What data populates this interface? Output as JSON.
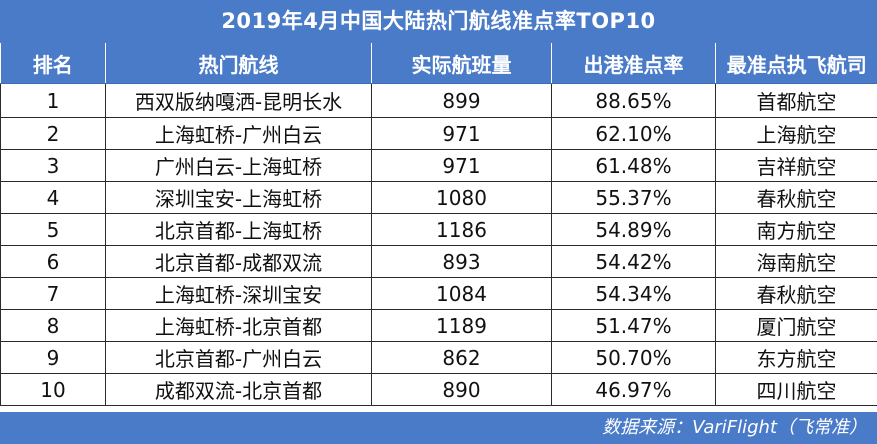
{
  "title": "2019年4月中国大陆热门航线准点率TOP10",
  "columns": [
    "排名",
    "热门航线",
    "实际航班量",
    "出港准点率",
    "最准点执飞航司"
  ],
  "rows": [
    {
      "rank": "1",
      "route": "西双版纳嘎洒-昆明长水",
      "flights": "899",
      "ontime": "88.65%",
      "airline": "首都航空"
    },
    {
      "rank": "2",
      "route": "上海虹桥-广州白云",
      "flights": "971",
      "ontime": "62.10%",
      "airline": "上海航空"
    },
    {
      "rank": "3",
      "route": "广州白云-上海虹桥",
      "flights": "971",
      "ontime": "61.48%",
      "airline": "吉祥航空"
    },
    {
      "rank": "4",
      "route": "深圳宝安-上海虹桥",
      "flights": "1080",
      "ontime": "55.37%",
      "airline": "春秋航空"
    },
    {
      "rank": "5",
      "route": "北京首都-上海虹桥",
      "flights": "1186",
      "ontime": "54.89%",
      "airline": "南方航空"
    },
    {
      "rank": "6",
      "route": "北京首都-成都双流",
      "flights": "893",
      "ontime": "54.42%",
      "airline": "海南航空"
    },
    {
      "rank": "7",
      "route": "上海虹桥-深圳宝安",
      "flights": "1084",
      "ontime": "54.34%",
      "airline": "春秋航空"
    },
    {
      "rank": "8",
      "route": "上海虹桥-北京首都",
      "flights": "1189",
      "ontime": "51.47%",
      "airline": "厦门航空"
    },
    {
      "rank": "9",
      "route": "北京首都-广州白云",
      "flights": "862",
      "ontime": "50.70%",
      "airline": "东方航空"
    },
    {
      "rank": "10",
      "route": "成都双流-北京首都",
      "flights": "890",
      "ontime": "46.97%",
      "airline": "四川航空"
    }
  ],
  "footer": "数据来源：VariFlight（飞常准）",
  "colors": {
    "header_bg": "#4a7bc9",
    "header_text": "#ffffff",
    "grid_line": "#2b2b2b"
  }
}
